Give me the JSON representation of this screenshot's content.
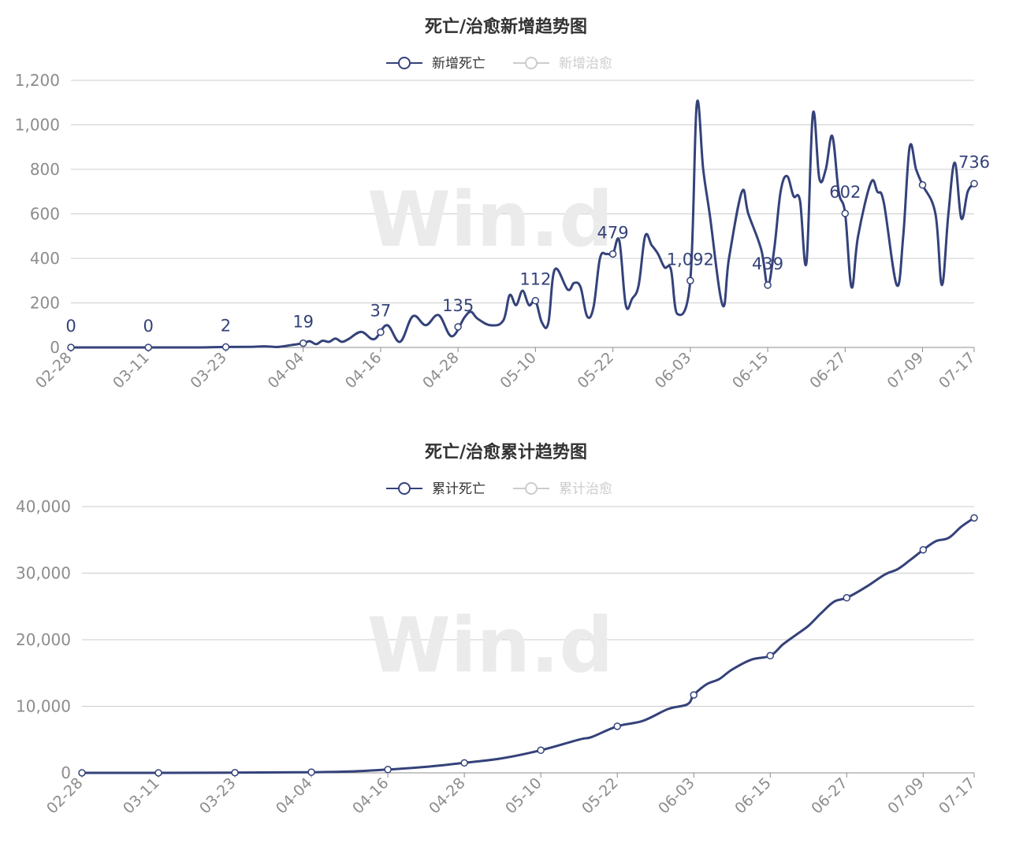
{
  "charts": [
    {
      "id": "daily",
      "title": "死亡/治愈新增趋势图",
      "legend": [
        {
          "label": "新增死亡",
          "active": true
        },
        {
          "label": "新增治愈",
          "active": false
        }
      ],
      "y_ticks": [
        "0",
        "200",
        "400",
        "600",
        "800",
        "1,000",
        "1,200"
      ],
      "x_ticks": [
        "02-28",
        "03-11",
        "03-23",
        "04-04",
        "04-16",
        "04-28",
        "05-10",
        "05-22",
        "06-03",
        "06-15",
        "06-27",
        "07-09",
        "07-17"
      ]
    },
    {
      "id": "cumulative",
      "title": "死亡/治愈累计趋势图",
      "legend": [
        {
          "label": "累计死亡",
          "active": true
        },
        {
          "label": "累计治愈",
          "active": false
        }
      ],
      "y_ticks": [
        "0",
        "10,000",
        "20,000",
        "30,000",
        "40,000"
      ],
      "x_ticks": [
        "02-28",
        "03-11",
        "03-23",
        "04-04",
        "04-16",
        "04-28",
        "05-10",
        "05-22",
        "06-03",
        "06-15",
        "06-27",
        "07-09",
        "07-17"
      ]
    }
  ],
  "watermark": "Win.d",
  "colors": {
    "series": "#34427a",
    "inactive": "#cccccc",
    "grid": "#cccccc",
    "axis": "#8c8c8c"
  },
  "chart_data": [
    {
      "type": "line",
      "title": "死亡/治愈新增趋势图",
      "xlabel": "",
      "ylabel": "",
      "ylim": [
        0,
        1200
      ],
      "x_ticks": [
        "02-28",
        "03-11",
        "03-23",
        "04-04",
        "04-16",
        "04-28",
        "05-10",
        "05-22",
        "06-03",
        "06-15",
        "06-27",
        "07-09",
        "07-17"
      ],
      "series": [
        {
          "name": "新增死亡",
          "points": [
            [
              0,
              0
            ],
            [
              4,
              0
            ],
            [
              8,
              0
            ],
            [
              12,
              0
            ],
            [
              16,
              0
            ],
            [
              20,
              0
            ],
            [
              24,
              2
            ],
            [
              28,
              3
            ],
            [
              30,
              5
            ],
            [
              32,
              2
            ],
            [
              34,
              10
            ],
            [
              36,
              19
            ],
            [
              37,
              28
            ],
            [
              38,
              15
            ],
            [
              39,
              30
            ],
            [
              40,
              25
            ],
            [
              41,
              40
            ],
            [
              42,
              25
            ],
            [
              43,
              37
            ],
            [
              45,
              70
            ],
            [
              47,
              37
            ],
            [
              49,
              100
            ],
            [
              51,
              25
            ],
            [
              53,
              140
            ],
            [
              55,
              100
            ],
            [
              57,
              145
            ],
            [
              59,
              50
            ],
            [
              61,
              135
            ],
            [
              62,
              160
            ],
            [
              63,
              130
            ],
            [
              65,
              100
            ],
            [
              67,
              120
            ],
            [
              68,
              235
            ],
            [
              69,
              190
            ],
            [
              70,
              255
            ],
            [
              71,
              190
            ],
            [
              72,
              210
            ],
            [
              73,
              112
            ],
            [
              74,
              110
            ],
            [
              75,
              350
            ],
            [
              77,
              260
            ],
            [
              78,
              290
            ],
            [
              79,
              270
            ],
            [
              80,
              140
            ],
            [
              81,
              180
            ],
            [
              82,
              400
            ],
            [
              83,
              420
            ],
            [
              84,
              420
            ],
            [
              85,
              479
            ],
            [
              86,
              190
            ],
            [
              87,
              220
            ],
            [
              88,
              280
            ],
            [
              89,
              500
            ],
            [
              90,
              460
            ],
            [
              91,
              420
            ],
            [
              92,
              360
            ],
            [
              93,
              350
            ],
            [
              94,
              150
            ],
            [
              96,
              300
            ],
            [
              97,
              1092
            ],
            [
              98,
              800
            ],
            [
              99,
              600
            ],
            [
              101,
              190
            ],
            [
              102,
              400
            ],
            [
              104,
              700
            ],
            [
              105,
              600
            ],
            [
              107,
              439
            ],
            [
              108,
              280
            ],
            [
              109,
              439
            ],
            [
              110,
              700
            ],
            [
              111,
              770
            ],
            [
              112,
              680
            ],
            [
              113,
              660
            ],
            [
              114,
              380
            ],
            [
              115,
              1050
            ],
            [
              116,
              760
            ],
            [
              117,
              800
            ],
            [
              118,
              950
            ],
            [
              119,
              700
            ],
            [
              120,
              602
            ],
            [
              121,
              270
            ],
            [
              122,
              500
            ],
            [
              124,
              740
            ],
            [
              125,
              700
            ],
            [
              126,
              650
            ],
            [
              128,
              280
            ],
            [
              129,
              500
            ],
            [
              130,
              900
            ],
            [
              131,
              800
            ],
            [
              132,
              730
            ],
            [
              134,
              600
            ],
            [
              135,
              280
            ],
            [
              136,
              600
            ],
            [
              137,
              830
            ],
            [
              138,
              580
            ],
            [
              139,
              700
            ],
            [
              140,
              736
            ]
          ],
          "labels": [
            {
              "day": 0,
              "value": "0"
            },
            {
              "day": 12,
              "value": "0"
            },
            {
              "day": 24,
              "value": "2"
            },
            {
              "day": 36,
              "value": "19"
            },
            {
              "day": 48,
              "value": "37"
            },
            {
              "day": 60,
              "value": "135"
            },
            {
              "day": 72,
              "value": "112"
            },
            {
              "day": 84,
              "value": "479"
            },
            {
              "day": 96,
              "value": "1,092"
            },
            {
              "day": 108,
              "value": "439"
            },
            {
              "day": 120,
              "value": "602"
            },
            {
              "day": 132,
              "value": ""
            },
            {
              "day": 140,
              "value": "736"
            }
          ]
        }
      ]
    },
    {
      "type": "line",
      "title": "死亡/治愈累计趋势图",
      "xlabel": "",
      "ylabel": "",
      "ylim": [
        0,
        40000
      ],
      "x_ticks": [
        "02-28",
        "03-11",
        "03-23",
        "04-04",
        "04-16",
        "04-28",
        "05-10",
        "05-22",
        "06-03",
        "06-15",
        "06-27",
        "07-09",
        "07-17"
      ],
      "series": [
        {
          "name": "累计死亡",
          "points": [
            [
              0,
              0
            ],
            [
              12,
              5
            ],
            [
              24,
              30
            ],
            [
              36,
              100
            ],
            [
              42,
              200
            ],
            [
              48,
              500
            ],
            [
              54,
              900
            ],
            [
              60,
              1500
            ],
            [
              66,
              2200
            ],
            [
              72,
              3400
            ],
            [
              78,
              5000
            ],
            [
              80,
              5400
            ],
            [
              84,
              7000
            ],
            [
              88,
              7800
            ],
            [
              92,
              9600
            ],
            [
              95,
              10300
            ],
            [
              96,
              11700
            ],
            [
              98,
              13300
            ],
            [
              100,
              14100
            ],
            [
              102,
              15500
            ],
            [
              105,
              17000
            ],
            [
              108,
              17600
            ],
            [
              110,
              19300
            ],
            [
              112,
              20700
            ],
            [
              114,
              22100
            ],
            [
              116,
              24000
            ],
            [
              118,
              25700
            ],
            [
              120,
              26300
            ],
            [
              123,
              27900
            ],
            [
              126,
              29800
            ],
            [
              128,
              30600
            ],
            [
              130,
              32000
            ],
            [
              132,
              33500
            ],
            [
              134,
              34800
            ],
            [
              136,
              35300
            ],
            [
              138,
              37000
            ],
            [
              140,
              38300
            ]
          ],
          "markers": [
            0,
            12,
            24,
            36,
            48,
            60,
            72,
            84,
            96,
            108,
            120,
            132,
            140
          ]
        }
      ]
    }
  ]
}
